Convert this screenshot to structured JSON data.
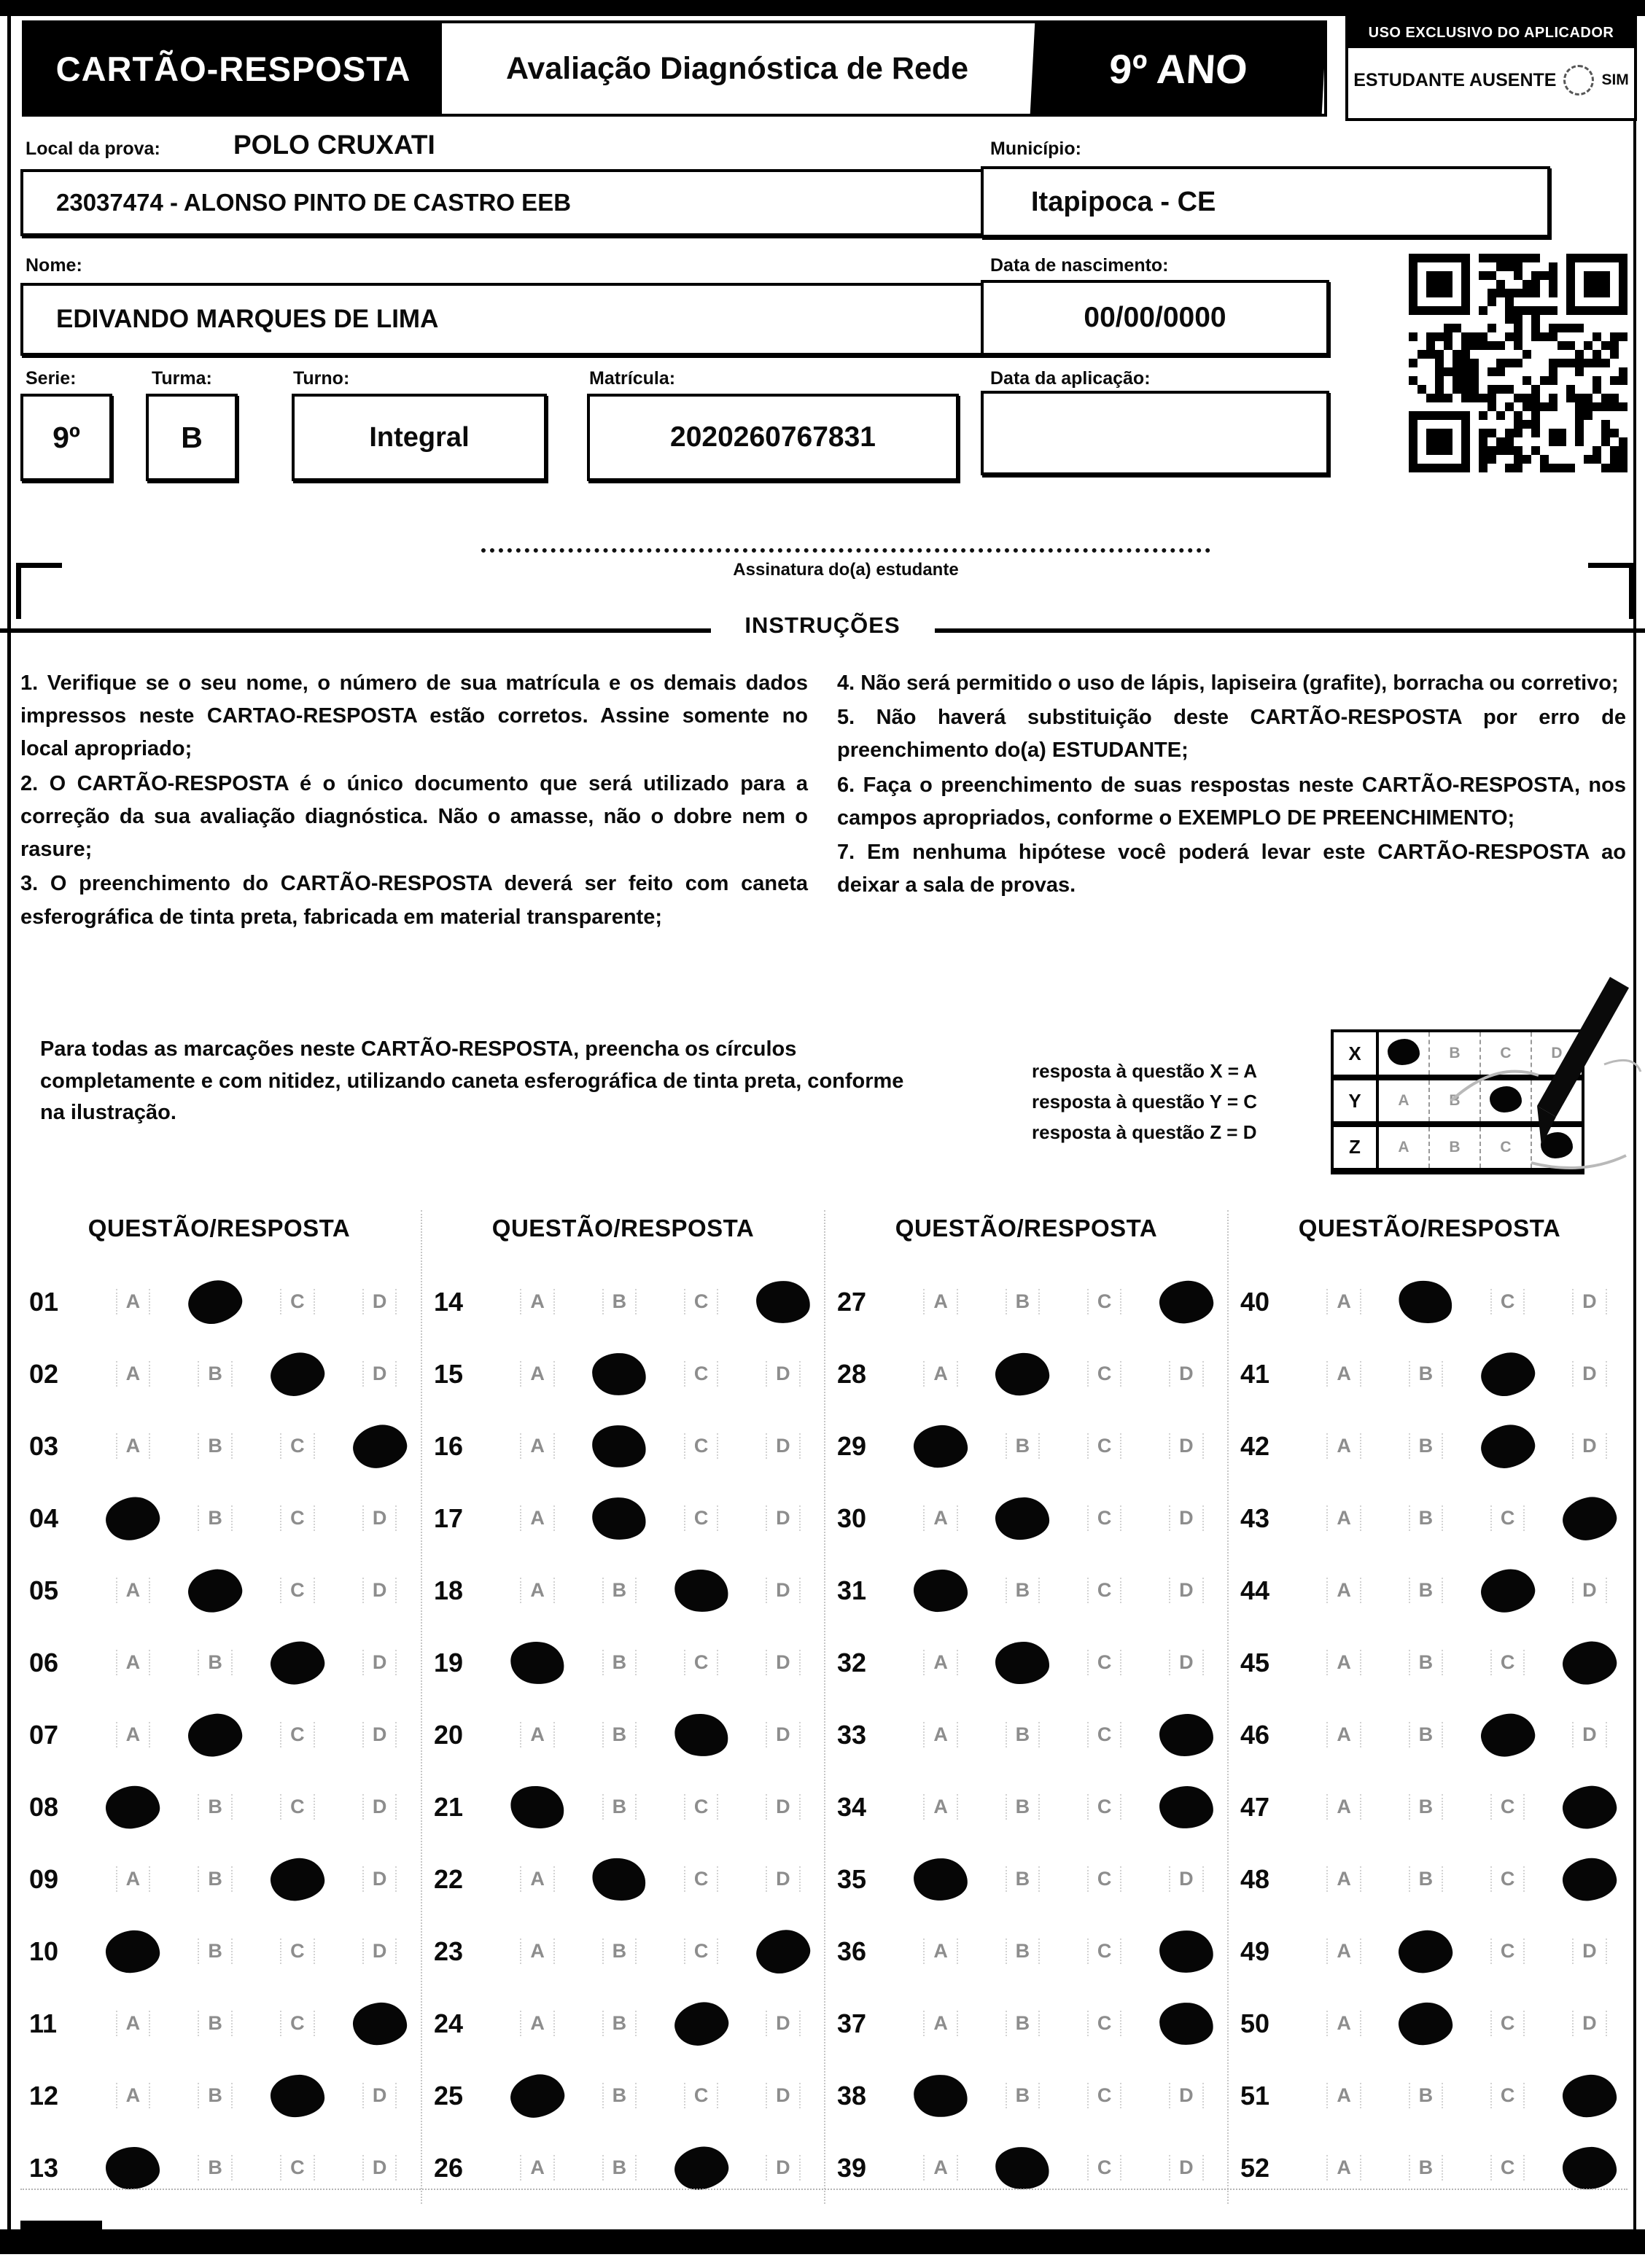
{
  "header": {
    "title": "CARTÃO-RESPOSTA",
    "subtitle": "Avaliação Diagnóstica de Rede",
    "grade": "9º ANO",
    "aplicador_title": "USO EXCLUSIVO DO APLICADOR",
    "absent_label": "ESTUDANTE AUSENTE",
    "absent_option": "SIM"
  },
  "form": {
    "local_label": "Local da prova:",
    "local_value": "POLO CRUXATI",
    "municipio_label": "Município:",
    "municipio_value": "Itapipoca - CE",
    "school_value": "23037474 - ALONSO PINTO DE CASTRO EEB",
    "nome_label": "Nome:",
    "nome_value": "EDIVANDO MARQUES DE LIMA",
    "nascimento_label": "Data de nascimento:",
    "nascimento_value": "00/00/0000",
    "serie_label": "Serie:",
    "serie_value": "9º",
    "turma_label": "Turma:",
    "turma_value": "B",
    "turno_label": "Turno:",
    "turno_value": "Integral",
    "matricula_label": "Matrícula:",
    "matricula_value": "2020260767831",
    "aplicacao_label": "Data da aplicação:",
    "aplicacao_value": ""
  },
  "signature_label": "Assinatura do(a) estudante",
  "instructions": {
    "title": "INSTRUÇÕES",
    "left": [
      "1. Verifique se o seu nome, o número de sua matrícula e os demais dados impressos neste CARTAO-RESPOSTA estão corretos. Assine somente no local apropriado;",
      "2. O CARTÃO-RESPOSTA é o único documento que será utilizado para a correção da sua avaliação diagnóstica. Não o amasse, não o dobre nem o rasure;",
      "3. O preenchimento do CARTÃO-RESPOSTA deverá ser feito com caneta esferográfica de tinta preta, fabricada em material transparente;"
    ],
    "right": [
      "4. Não será permitido o uso de lápis, lapiseira (grafite), borracha ou corretivo;",
      "5. Não haverá substituição deste CARTÃO-RESPOSTA por erro de preenchimento do(a) ESTUDANTE;",
      "6. Faça o preenchimento de suas respostas neste CARTÃO-RESPOSTA, nos campos apropriados, conforme o EXEMPLO DE PREENCHIMENTO;",
      "7. Em nenhuma hipótese você poderá levar este CARTÃO-RESPOSTA ao deixar a sala de provas."
    ]
  },
  "marking": {
    "paragraph": "Para todas as marcações neste CARTÃO-RESPOSTA, preencha os círculos completamente e com nitidez, utilizando caneta esferográfica de tinta preta, conforme na ilustração.",
    "example_lines": [
      "resposta à questão X = A",
      "resposta à questão Y = C",
      "resposta à questão Z = D"
    ],
    "example_grid": {
      "options": [
        "A",
        "B",
        "C",
        "D"
      ],
      "rows": [
        {
          "label": "X",
          "answer": "A"
        },
        {
          "label": "Y",
          "answer": "C"
        },
        {
          "label": "Z",
          "answer": "D"
        }
      ]
    }
  },
  "answers": {
    "column_header": "QUESTÃO/RESPOSTA",
    "options": [
      "A",
      "B",
      "C",
      "D"
    ],
    "columns": [
      [
        {
          "num": "01",
          "answer": "B"
        },
        {
          "num": "02",
          "answer": "C"
        },
        {
          "num": "03",
          "answer": "D"
        },
        {
          "num": "04",
          "answer": "A"
        },
        {
          "num": "05",
          "answer": "B"
        },
        {
          "num": "06",
          "answer": "C"
        },
        {
          "num": "07",
          "answer": "B"
        },
        {
          "num": "08",
          "answer": "A"
        },
        {
          "num": "09",
          "answer": "C"
        },
        {
          "num": "10",
          "answer": "A"
        },
        {
          "num": "11",
          "answer": "D"
        },
        {
          "num": "12",
          "answer": "C"
        },
        {
          "num": "13",
          "answer": "A"
        }
      ],
      [
        {
          "num": "14",
          "answer": "D"
        },
        {
          "num": "15",
          "answer": "B"
        },
        {
          "num": "16",
          "answer": "B"
        },
        {
          "num": "17",
          "answer": "B"
        },
        {
          "num": "18",
          "answer": "C"
        },
        {
          "num": "19",
          "answer": "A"
        },
        {
          "num": "20",
          "answer": "C"
        },
        {
          "num": "21",
          "answer": "A"
        },
        {
          "num": "22",
          "answer": "B"
        },
        {
          "num": "23",
          "answer": "D"
        },
        {
          "num": "24",
          "answer": "C"
        },
        {
          "num": "25",
          "answer": "A"
        },
        {
          "num": "26",
          "answer": "C"
        }
      ],
      [
        {
          "num": "27",
          "answer": "D"
        },
        {
          "num": "28",
          "answer": "B"
        },
        {
          "num": "29",
          "answer": "A"
        },
        {
          "num": "30",
          "answer": "B"
        },
        {
          "num": "31",
          "answer": "A"
        },
        {
          "num": "32",
          "answer": "B"
        },
        {
          "num": "33",
          "answer": "D"
        },
        {
          "num": "34",
          "answer": "D"
        },
        {
          "num": "35",
          "answer": "A"
        },
        {
          "num": "36",
          "answer": "D"
        },
        {
          "num": "37",
          "answer": "D"
        },
        {
          "num": "38",
          "answer": "A"
        },
        {
          "num": "39",
          "answer": "B"
        }
      ],
      [
        {
          "num": "40",
          "answer": "B"
        },
        {
          "num": "41",
          "answer": "C"
        },
        {
          "num": "42",
          "answer": "C"
        },
        {
          "num": "43",
          "answer": "D"
        },
        {
          "num": "44",
          "answer": "C"
        },
        {
          "num": "45",
          "answer": "D"
        },
        {
          "num": "46",
          "answer": "C"
        },
        {
          "num": "47",
          "answer": "D"
        },
        {
          "num": "48",
          "answer": "D"
        },
        {
          "num": "49",
          "answer": "B"
        },
        {
          "num": "50",
          "answer": "B"
        },
        {
          "num": "51",
          "answer": "D"
        },
        {
          "num": "52",
          "answer": "D"
        }
      ]
    ]
  }
}
